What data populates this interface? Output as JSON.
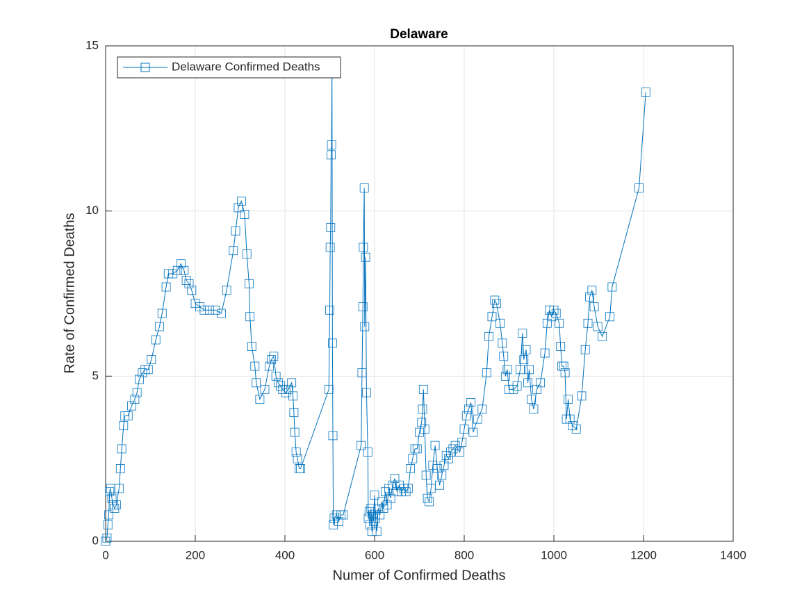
{
  "chart_data": {
    "type": "line",
    "title": "Delaware",
    "x_label": "Numer of Confirmed Deaths",
    "y_label": "Rate of Confirmed Deaths",
    "xlim": [
      0,
      1400
    ],
    "ylim": [
      0,
      15
    ],
    "xticks": [
      0,
      200,
      400,
      600,
      800,
      1000,
      1200,
      1400
    ],
    "yticks": [
      0,
      5,
      10,
      15
    ],
    "grid": true,
    "legend": "upper-left",
    "marker": "square",
    "x": [
      0,
      3,
      5,
      7,
      9,
      11,
      14,
      17,
      20,
      24,
      30,
      33,
      36,
      40,
      43,
      50,
      58,
      65,
      70,
      75,
      82,
      88,
      95,
      102,
      112,
      120,
      126,
      135,
      140,
      150,
      160,
      168,
      175,
      180,
      186,
      192,
      200,
      210,
      220,
      232,
      245,
      258,
      270,
      285,
      290,
      296,
      303,
      310,
      315,
      320,
      322,
      326,
      333,
      336,
      344,
      355,
      365,
      370,
      375,
      380,
      385,
      390,
      395,
      402,
      408,
      415,
      418,
      420,
      422,
      425,
      428,
      432,
      435,
      498,
      500,
      501,
      502,
      503,
      504,
      505,
      506,
      507,
      508,
      510,
      515,
      520,
      525,
      530,
      570,
      572,
      574,
      575,
      577,
      578,
      580,
      582,
      585,
      586,
      588,
      590,
      592,
      594,
      596,
      598,
      600,
      602,
      605,
      608,
      612,
      616,
      620,
      624,
      628,
      632,
      636,
      640,
      645,
      650,
      655,
      660,
      665,
      670,
      675,
      680,
      685,
      690,
      695,
      700,
      705,
      707,
      709,
      712,
      715,
      718,
      722,
      726,
      730,
      735,
      740,
      745,
      750,
      755,
      760,
      765,
      770,
      775,
      780,
      790,
      795,
      800,
      805,
      810,
      815,
      820,
      830,
      840,
      850,
      855,
      862,
      868,
      872,
      880,
      885,
      888,
      892,
      896,
      900,
      910,
      918,
      925,
      930,
      933,
      938,
      942,
      945,
      950,
      955,
      962,
      970,
      980,
      985,
      990,
      995,
      1000,
      1005,
      1012,
      1015,
      1018,
      1022,
      1025,
      1028,
      1032,
      1036,
      1042,
      1050,
      1062,
      1070,
      1076,
      1080,
      1085,
      1090,
      1098,
      1108,
      1125,
      1130,
      1190,
      1205
    ],
    "series": [
      {
        "name": "Delaware Confirmed Deaths",
        "color": "#0072bd",
        "values": [
          0,
          0.1,
          0.5,
          0.8,
          1.5,
          1.6,
          1.3,
          1.1,
          1.0,
          1.1,
          1.6,
          2.2,
          2.8,
          3.5,
          3.8,
          3.8,
          4.1,
          4.3,
          4.5,
          4.9,
          5.1,
          5.2,
          5.2,
          5.5,
          6.1,
          6.5,
          6.9,
          7.7,
          8.1,
          8.1,
          8.2,
          8.4,
          8.2,
          7.9,
          7.8,
          7.6,
          7.2,
          7.1,
          7.0,
          7.0,
          7.0,
          6.9,
          7.6,
          8.8,
          9.4,
          10.1,
          10.3,
          9.9,
          8.7,
          7.8,
          6.8,
          5.9,
          5.3,
          4.8,
          4.3,
          4.6,
          5.3,
          5.5,
          5.6,
          5.0,
          4.8,
          4.7,
          4.6,
          4.5,
          4.6,
          4.8,
          4.4,
          3.9,
          3.3,
          2.7,
          2.5,
          2.2,
          2.2,
          4.6,
          7.0,
          8.9,
          9.5,
          11.7,
          12.0,
          14.5,
          6.0,
          3.2,
          0.5,
          0.7,
          0.8,
          0.6,
          0.8,
          0.8,
          2.9,
          5.1,
          7.1,
          8.9,
          10.7,
          6.5,
          8.6,
          4.5,
          2.7,
          0.7,
          0.9,
          0.5,
          1.0,
          0.3,
          0.8,
          0.6,
          1.4,
          0.7,
          0.3,
          1.0,
          0.8,
          1.2,
          1.0,
          1.5,
          1.1,
          1.6,
          1.3,
          1.7,
          1.9,
          1.5,
          1.7,
          1.5,
          1.6,
          1.5,
          1.6,
          2.2,
          2.5,
          2.8,
          2.8,
          3.3,
          3.6,
          4.0,
          4.6,
          3.4,
          2.0,
          1.3,
          1.2,
          1.6,
          2.3,
          2.9,
          2.2,
          1.7,
          2.0,
          2.3,
          2.6,
          2.5,
          2.7,
          2.8,
          2.9,
          2.7,
          3.0,
          3.4,
          3.8,
          4.0,
          4.2,
          3.3,
          3.7,
          4.0,
          5.1,
          6.2,
          6.8,
          7.3,
          7.2,
          6.6,
          6.0,
          5.6,
          5.0,
          5.2,
          4.6,
          4.6,
          4.7,
          5.2,
          6.3,
          5.5,
          5.8,
          4.8,
          5.2,
          4.3,
          4.0,
          4.6,
          4.8,
          5.7,
          6.6,
          7.0,
          6.8,
          7.0,
          6.9,
          6.6,
          5.9,
          5.3,
          5.3,
          5.1,
          3.7,
          4.3,
          3.7,
          3.5,
          3.4,
          4.4,
          5.8,
          6.6,
          7.4,
          7.6,
          7.1,
          6.5,
          6.2,
          6.8,
          7.7,
          10.7,
          13.6
        ]
      }
    ]
  }
}
